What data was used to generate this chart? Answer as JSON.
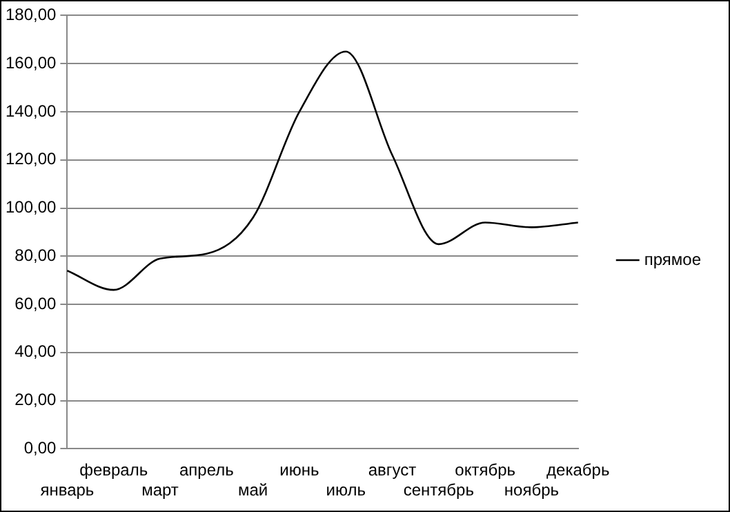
{
  "chart_data": {
    "type": "line",
    "categories": [
      "январь",
      "февраль",
      "март",
      "апрель",
      "май",
      "июнь",
      "июль",
      "август",
      "сентябрь",
      "октябрь",
      "ноябрь",
      "декабрь"
    ],
    "series": [
      {
        "name": "прямое",
        "color": "#000000",
        "values": [
          74,
          66,
          79,
          81,
          96,
          140,
          165,
          122,
          85,
          94,
          92,
          94
        ]
      }
    ],
    "ylim": [
      0,
      180
    ],
    "yticks": [
      {
        "value": 0,
        "label": "0,00"
      },
      {
        "value": 20,
        "label": "20,00"
      },
      {
        "value": 40,
        "label": "40,00"
      },
      {
        "value": 60,
        "label": "60,00"
      },
      {
        "value": 80,
        "label": "80,00"
      },
      {
        "value": 100,
        "label": "100,00"
      },
      {
        "value": 120,
        "label": "120,00"
      },
      {
        "value": 140,
        "label": "140,00"
      },
      {
        "value": 160,
        "label": "160,00"
      },
      {
        "value": 180,
        "label": "180,00"
      }
    ],
    "grid": "y",
    "legend": "right",
    "marker": "none",
    "line_style": "solid"
  }
}
